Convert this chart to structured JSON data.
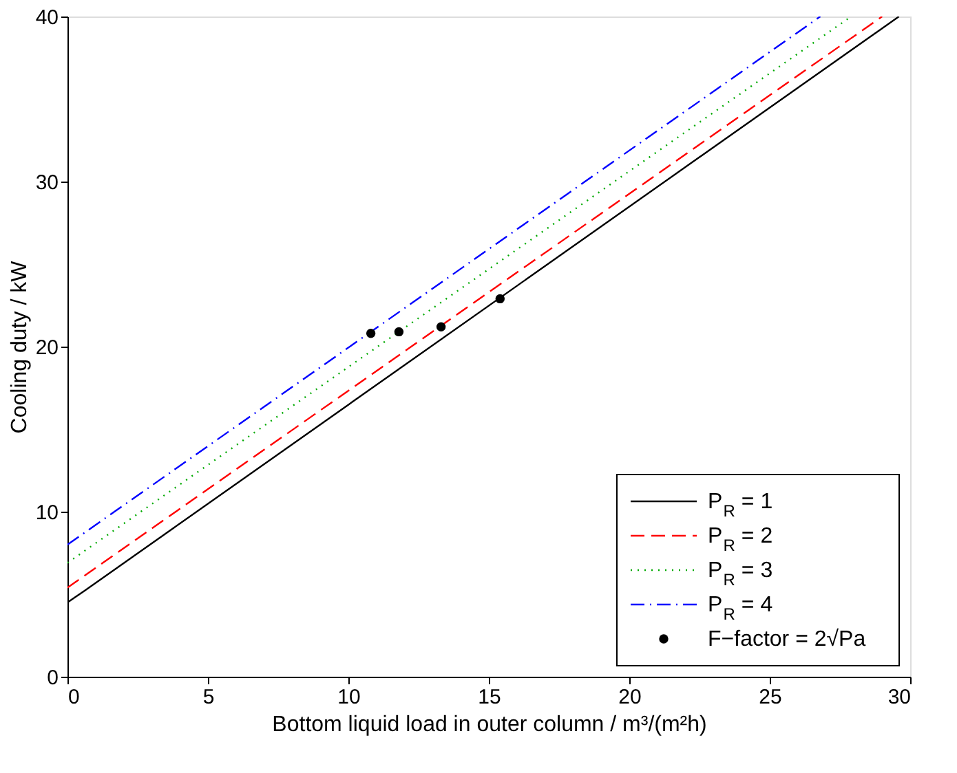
{
  "chart_data": {
    "type": "line",
    "xlabel": "Bottom liquid load in outer column   /  m³/(m²h)",
    "ylabel": "Cooling duty  /  kW",
    "xlim": [
      0,
      30
    ],
    "ylim": [
      0,
      40
    ],
    "xticks": [
      0,
      5,
      10,
      15,
      20,
      25,
      30
    ],
    "yticks": [
      0,
      10,
      20,
      30,
      40
    ],
    "grid": false,
    "legend": "bottom right",
    "series": [
      {
        "name": "P$_{R}$ = 1",
        "color": "#000000",
        "line_style": "solid",
        "x": [
          0,
          0.6,
          29.6
        ],
        "values": [
          4.5,
          5.2,
          40
        ]
      },
      {
        "name": "P$_{R}$ = 2",
        "color": "#ff0000",
        "line_style": "dashed",
        "x": [
          0,
          29.0
        ],
        "values": [
          5.4,
          40
        ]
      },
      {
        "name": "P$_{R}$ = 3",
        "color": "#00aa00",
        "line_style": "dotted",
        "x": [
          0,
          27.9
        ],
        "values": [
          6.9,
          40
        ]
      },
      {
        "name": "P$_{R}$ = 4",
        "color": "#0000ff",
        "line_style": "dashdot",
        "x": [
          0,
          26.8
        ],
        "values": [
          8.0,
          40
        ]
      },
      {
        "name": "F−factor = 2√Pa",
        "type": "scatter",
        "color": "#000000",
        "marker": "circle",
        "x": [
          10.8,
          11.8,
          13.3,
          15.4
        ],
        "values": [
          20.8,
          20.9,
          21.2,
          22.9
        ]
      }
    ]
  }
}
